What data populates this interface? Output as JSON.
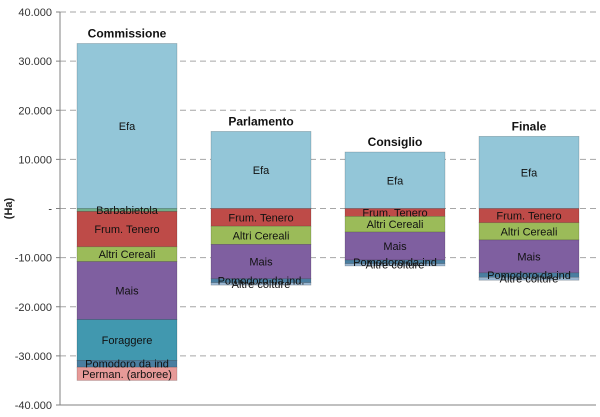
{
  "chart_data": {
    "type": "bar",
    "stacked": true,
    "ylabel": "(Ha)",
    "ylim": [
      -40000,
      40000
    ],
    "yticks": [
      40000,
      30000,
      20000,
      10000,
      0,
      -10000,
      -20000,
      -30000,
      -40000
    ],
    "ytick_labels": [
      "40.000",
      "30.000",
      "20.000",
      "10.000",
      "-",
      "-10.000",
      "-20.000",
      "-30.000",
      "-40.000"
    ],
    "grid": true,
    "categories": [
      "Commissione",
      "Parlamento",
      "Consiglio",
      "Finale"
    ],
    "colors": {
      "Efa": "#93c6d8",
      "Barbabietola": "#6fae8a",
      "Frum. Tenero": "#be4b48",
      "Altri Cereali": "#9bbb59",
      "Mais": "#7f5fa0",
      "Foraggere": "#4198af",
      "Pomodoro da ind": "#4a7ea0",
      "Altre colture": "#9ab6d0",
      "Perman. (arboree)": "#e79a98"
    },
    "bars": [
      {
        "name": "Commissione",
        "segments": [
          {
            "name": "Efa",
            "label": "Efa",
            "value": 33600
          },
          {
            "name": "Barbabietola",
            "label": "Barbabietola",
            "value": -600
          },
          {
            "name": "Frum. Tenero",
            "label": "Frum. Tenero",
            "value": -7200
          },
          {
            "name": "Altri Cereali",
            "label": "Altri Cereali",
            "value": -3000
          },
          {
            "name": "Mais",
            "label": "Mais",
            "value": -11800
          },
          {
            "name": "Foraggere",
            "label": "Foraggere",
            "value": -8300
          },
          {
            "name": "Pomodoro da ind",
            "label": "Pomodoro da ind",
            "value": -1400
          },
          {
            "name": "Perman. (arboree)",
            "label": "Perman. (arboree)",
            "value": -2700
          }
        ]
      },
      {
        "name": "Parlamento",
        "segments": [
          {
            "name": "Efa",
            "label": "Efa",
            "value": 15700
          },
          {
            "name": "Frum. Tenero",
            "label": "Frum. Tenero",
            "value": -3600
          },
          {
            "name": "Altri Cereali",
            "label": "Altri Cereali",
            "value": -3700
          },
          {
            "name": "Mais",
            "label": "Mais",
            "value": -7000
          },
          {
            "name": "Pomodoro da ind",
            "label": "Pomodoro da ind.",
            "value": -800
          },
          {
            "name": "Altre colture",
            "label": "Altre colture",
            "value": -500
          }
        ]
      },
      {
        "name": "Consiglio",
        "segments": [
          {
            "name": "Efa",
            "label": "Efa",
            "value": 11500
          },
          {
            "name": "Frum. Tenero",
            "label": "Frum. Tenero",
            "value": -1600
          },
          {
            "name": "Altri Cereali",
            "label": "Altri Cereali",
            "value": -3200
          },
          {
            "name": "Mais",
            "label": "Mais",
            "value": -5700
          },
          {
            "name": "Pomodoro da ind",
            "label": "Pomodoro da ind",
            "value": -700
          },
          {
            "name": "Altre colture",
            "label": "Altre colture",
            "value": -500
          }
        ]
      },
      {
        "name": "Finale",
        "segments": [
          {
            "name": "Efa",
            "label": "Efa",
            "value": 14700
          },
          {
            "name": "Frum. Tenero",
            "label": "Frum. Tenero",
            "value": -2900
          },
          {
            "name": "Altri Cereali",
            "label": "Altri Cereali",
            "value": -3500
          },
          {
            "name": "Mais",
            "label": "Mais",
            "value": -6700
          },
          {
            "name": "Pomodoro da ind",
            "label": "Pomodoro da ind",
            "value": -900
          },
          {
            "name": "Altre colture",
            "label": "Altre colture",
            "value": -600
          }
        ]
      }
    ]
  }
}
